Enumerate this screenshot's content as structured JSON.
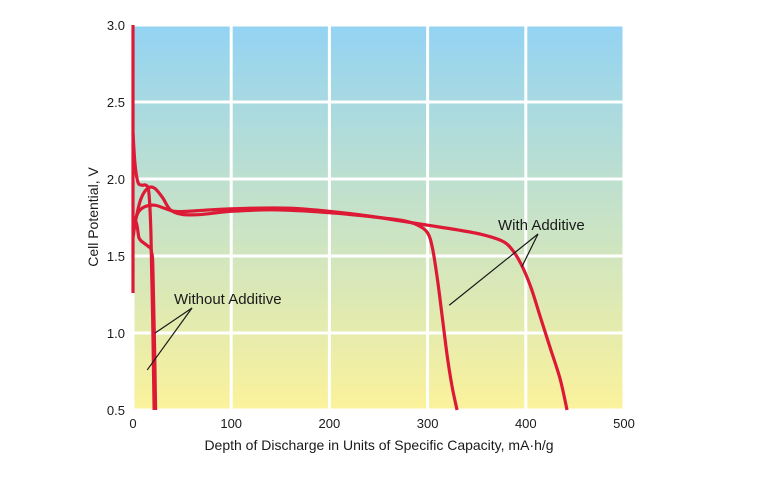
{
  "chart_data": {
    "type": "line",
    "xlabel": "Depth of Discharge in Units of Specific Capacity, mA·h/g",
    "ylabel": "Cell Potential, V",
    "xlim": [
      0,
      500
    ],
    "ylim": [
      0.5,
      3.0
    ],
    "x_ticks": [
      "0",
      "100",
      "200",
      "300",
      "400",
      "500"
    ],
    "y_ticks": [
      "0.5",
      "1.0",
      "1.5",
      "2.0",
      "2.5",
      "3.0"
    ],
    "grid": true,
    "background_gradient": {
      "top": "#93d3f3",
      "bottom": "#fbf29b"
    },
    "line_color": "#dc1a35",
    "annotations": [
      "Without Additive",
      "With Additive"
    ],
    "series": [
      {
        "name": "Without Additive (short)",
        "points": [
          [
            0,
            2.3
          ],
          [
            2,
            2.1
          ],
          [
            5,
            1.98
          ],
          [
            9,
            1.96
          ],
          [
            13,
            1.96
          ],
          [
            16,
            1.92
          ],
          [
            18,
            1.7
          ],
          [
            19,
            1.4
          ],
          [
            20,
            1.1
          ],
          [
            21,
            0.7
          ],
          [
            21.5,
            0.5
          ]
        ]
      },
      {
        "name": "Without Additive (long)",
        "points": [
          [
            0,
            1.75
          ],
          [
            2,
            1.74
          ],
          [
            4,
            1.7
          ],
          [
            5,
            1.66
          ],
          [
            6,
            1.62
          ],
          [
            8,
            1.6
          ],
          [
            12,
            1.58
          ],
          [
            16,
            1.56
          ],
          [
            18,
            1.55
          ],
          [
            19,
            1.52
          ],
          [
            20,
            1.47
          ],
          [
            21,
            1.2
          ],
          [
            22,
            0.9
          ],
          [
            23,
            0.5
          ]
        ]
      },
      {
        "name": "With Additive (first)",
        "points": [
          [
            0,
            1.62
          ],
          [
            3,
            1.74
          ],
          [
            8,
            1.87
          ],
          [
            15,
            1.94
          ],
          [
            22,
            1.94
          ],
          [
            30,
            1.88
          ],
          [
            38,
            1.8
          ],
          [
            50,
            1.77
          ],
          [
            70,
            1.77
          ],
          [
            100,
            1.79
          ],
          [
            140,
            1.8
          ],
          [
            180,
            1.79
          ],
          [
            220,
            1.77
          ],
          [
            250,
            1.75
          ],
          [
            275,
            1.73
          ],
          [
            290,
            1.7
          ],
          [
            300,
            1.65
          ],
          [
            305,
            1.55
          ],
          [
            310,
            1.35
          ],
          [
            315,
            1.1
          ],
          [
            320,
            0.85
          ],
          [
            325,
            0.65
          ],
          [
            330,
            0.5
          ]
        ]
      },
      {
        "name": "With Additive (second)",
        "points": [
          [
            0,
            1.68
          ],
          [
            5,
            1.78
          ],
          [
            12,
            1.82
          ],
          [
            22,
            1.83
          ],
          [
            32,
            1.81
          ],
          [
            42,
            1.79
          ],
          [
            55,
            1.79
          ],
          [
            80,
            1.8
          ],
          [
            120,
            1.81
          ],
          [
            160,
            1.81
          ],
          [
            200,
            1.79
          ],
          [
            240,
            1.76
          ],
          [
            270,
            1.73
          ],
          [
            300,
            1.7
          ],
          [
            330,
            1.67
          ],
          [
            355,
            1.64
          ],
          [
            375,
            1.6
          ],
          [
            385,
            1.55
          ],
          [
            395,
            1.45
          ],
          [
            405,
            1.3
          ],
          [
            415,
            1.1
          ],
          [
            425,
            0.9
          ],
          [
            435,
            0.7
          ],
          [
            442,
            0.5
          ]
        ]
      },
      {
        "name": "Initial voltage spike",
        "points": [
          [
            0,
            3.0
          ],
          [
            0,
            1.26
          ]
        ]
      }
    ]
  }
}
